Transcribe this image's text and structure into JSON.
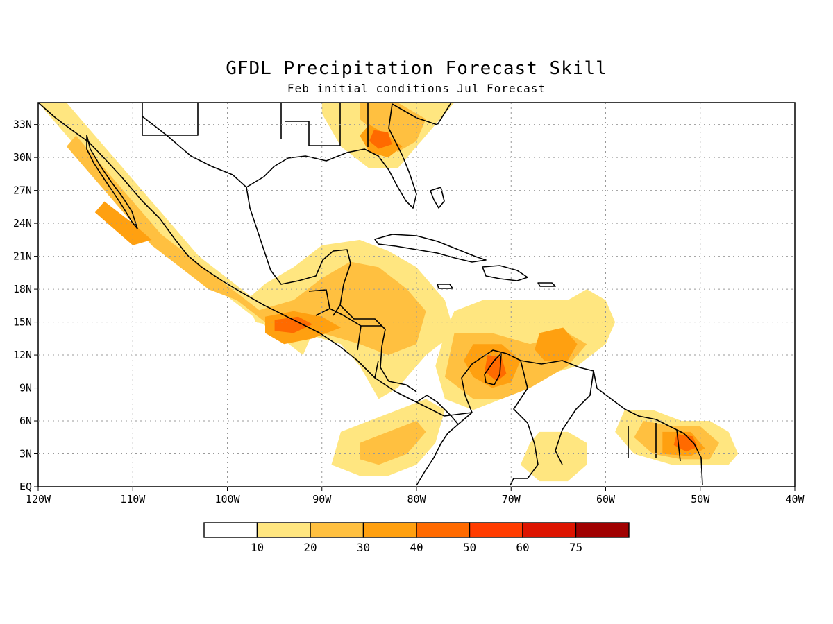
{
  "title": "GFDL Precipitation Forecast Skill",
  "subtitle": "Feb initial conditions  Jul Forecast",
  "map": {
    "lon_range": [
      -120,
      -40
    ],
    "lat_range": [
      0,
      35
    ],
    "lon_labels": [
      "120W",
      "110W",
      "100W",
      "90W",
      "80W",
      "70W",
      "60W",
      "50W",
      "40W"
    ],
    "lat_labels": [
      "EQ",
      "3N",
      "6N",
      "9N",
      "12N",
      "15N",
      "18N",
      "21N",
      "24N",
      "27N",
      "30N",
      "33N"
    ],
    "grid": true
  },
  "legend": {
    "labels": [
      "10",
      "20",
      "30",
      "40",
      "50",
      "60",
      "75"
    ],
    "colors": [
      "#ffffff",
      "#ffe680",
      "#ffc040",
      "#ffa010",
      "#ff6a00",
      "#ff3c00",
      "#dd1400",
      "#a00000"
    ]
  },
  "skill_regions": [
    {
      "level": 1,
      "points": [
        [
          -98,
          17
        ],
        [
          -96,
          18.5
        ],
        [
          -93,
          20
        ],
        [
          -90,
          22
        ],
        [
          -86,
          22.5
        ],
        [
          -83,
          21.5
        ],
        [
          -80,
          20
        ],
        [
          -77,
          17
        ],
        [
          -76,
          14
        ],
        [
          -79,
          12
        ],
        [
          -82,
          9
        ],
        [
          -84,
          8
        ],
        [
          -86,
          11
        ],
        [
          -88,
          13
        ],
        [
          -92,
          14
        ],
        [
          -97,
          15
        ]
      ]
    },
    {
      "level": 1,
      "points": [
        [
          -76,
          16
        ],
        [
          -73,
          17
        ],
        [
          -68,
          17
        ],
        [
          -64,
          17
        ],
        [
          -62,
          18
        ],
        [
          -60,
          17
        ],
        [
          -59,
          15
        ],
        [
          -60,
          13
        ],
        [
          -63,
          11
        ],
        [
          -67,
          10
        ],
        [
          -71,
          8
        ],
        [
          -74,
          7
        ],
        [
          -77,
          8
        ],
        [
          -78,
          11
        ],
        [
          -77,
          14
        ]
      ]
    },
    {
      "level": 1,
      "points": [
        [
          -118,
          33
        ],
        [
          -116,
          31
        ],
        [
          -113,
          28
        ],
        [
          -110,
          25
        ],
        [
          -107,
          22
        ],
        [
          -104,
          20
        ],
        [
          -101,
          18
        ],
        [
          -98,
          16
        ],
        [
          -95,
          14
        ],
        [
          -92,
          12
        ],
        [
          -91,
          14
        ],
        [
          -94,
          16
        ],
        [
          -97,
          17
        ],
        [
          -100,
          19
        ],
        [
          -103,
          21
        ],
        [
          -106,
          24
        ],
        [
          -109,
          27
        ],
        [
          -112,
          30
        ],
        [
          -115,
          33
        ],
        [
          -117,
          35
        ],
        [
          -120,
          35
        ]
      ]
    },
    {
      "level": 1,
      "points": [
        [
          -88,
          5
        ],
        [
          -85,
          6
        ],
        [
          -82,
          7
        ],
        [
          -79,
          8
        ],
        [
          -77,
          7
        ],
        [
          -78,
          4
        ],
        [
          -80,
          2
        ],
        [
          -83,
          1
        ],
        [
          -86,
          1
        ],
        [
          -89,
          2
        ]
      ]
    },
    {
      "level": 1,
      "points": [
        [
          -90,
          34
        ],
        [
          -88,
          31
        ],
        [
          -85,
          29
        ],
        [
          -82,
          29
        ],
        [
          -80,
          31
        ],
        [
          -78,
          33
        ],
        [
          -76,
          35
        ],
        [
          -90,
          35
        ]
      ]
    },
    {
      "level": 1,
      "points": [
        [
          -58,
          7
        ],
        [
          -55,
          7
        ],
        [
          -52,
          6
        ],
        [
          -49,
          6
        ],
        [
          -47,
          5
        ],
        [
          -46,
          3
        ],
        [
          -47,
          2
        ],
        [
          -50,
          2
        ],
        [
          -53,
          2
        ],
        [
          -57,
          3
        ],
        [
          -59,
          5
        ]
      ]
    },
    {
      "level": 1,
      "points": [
        [
          -67,
          5
        ],
        [
          -64,
          5
        ],
        [
          -62,
          4
        ],
        [
          -62,
          2
        ],
        [
          -64,
          0.5
        ],
        [
          -67,
          0.5
        ],
        [
          -69,
          2
        ],
        [
          -68,
          4
        ]
      ]
    },
    {
      "level": 2,
      "points": [
        [
          -97,
          16
        ],
        [
          -93,
          17
        ],
        [
          -90,
          19
        ],
        [
          -87,
          20.5
        ],
        [
          -84,
          20
        ],
        [
          -81,
          18
        ],
        [
          -79,
          16
        ],
        [
          -80,
          13
        ],
        [
          -83,
          12
        ],
        [
          -86,
          13
        ],
        [
          -90,
          14
        ],
        [
          -94,
          14.5
        ]
      ]
    },
    {
      "level": 2,
      "points": [
        [
          -117,
          31
        ],
        [
          -114,
          28
        ],
        [
          -111,
          25
        ],
        [
          -108,
          22
        ],
        [
          -105,
          20
        ],
        [
          -102,
          18
        ],
        [
          -99,
          17
        ],
        [
          -96,
          15
        ],
        [
          -93,
          13
        ],
        [
          -95,
          15
        ],
        [
          -98,
          17
        ],
        [
          -101,
          19
        ],
        [
          -104,
          21
        ],
        [
          -107,
          23
        ],
        [
          -110,
          26
        ],
        [
          -113,
          29
        ],
        [
          -116,
          32
        ]
      ]
    },
    {
      "level": 2,
      "points": [
        [
          -76,
          14
        ],
        [
          -72,
          14
        ],
        [
          -68,
          13
        ],
        [
          -64,
          14
        ],
        [
          -62,
          13
        ],
        [
          -64,
          11
        ],
        [
          -68,
          9
        ],
        [
          -71,
          8
        ],
        [
          -74,
          8
        ],
        [
          -77,
          10
        ]
      ]
    },
    {
      "level": 2,
      "points": [
        [
          -86,
          33.5
        ],
        [
          -84,
          32
        ],
        [
          -82,
          30.5
        ],
        [
          -80,
          31.5
        ],
        [
          -79,
          33.5
        ],
        [
          -82,
          35
        ],
        [
          -86,
          35
        ]
      ]
    },
    {
      "level": 2,
      "points": [
        [
          -56,
          6
        ],
        [
          -53,
          5.5
        ],
        [
          -50,
          5.5
        ],
        [
          -48,
          4
        ],
        [
          -49,
          2.5
        ],
        [
          -52,
          2.5
        ],
        [
          -55,
          3
        ],
        [
          -57,
          4.5
        ]
      ]
    },
    {
      "level": 2,
      "points": [
        [
          -86,
          4
        ],
        [
          -83,
          5
        ],
        [
          -80,
          6
        ],
        [
          -79,
          5
        ],
        [
          -81,
          3
        ],
        [
          -84,
          2
        ],
        [
          -86,
          2.5
        ]
      ]
    },
    {
      "level": 3,
      "points": [
        [
          -96,
          15.5
        ],
        [
          -93,
          16
        ],
        [
          -90,
          15.5
        ],
        [
          -88,
          14.5
        ],
        [
          -91,
          13.5
        ],
        [
          -94,
          13
        ],
        [
          -96,
          14
        ]
      ]
    },
    {
      "level": 3,
      "points": [
        [
          -74,
          13
        ],
        [
          -71,
          13
        ],
        [
          -69,
          11.5
        ],
        [
          -70,
          9.5
        ],
        [
          -72,
          9
        ],
        [
          -74,
          10
        ],
        [
          -75,
          11.5
        ]
      ]
    },
    {
      "level": 3,
      "points": [
        [
          -67,
          14
        ],
        [
          -64.5,
          14.5
        ],
        [
          -63,
          13
        ],
        [
          -64,
          11.5
        ],
        [
          -66.5,
          11.5
        ],
        [
          -67.5,
          12.5
        ]
      ]
    },
    {
      "level": 3,
      "points": [
        [
          -85,
          33
        ],
        [
          -83,
          32
        ],
        [
          -81.5,
          31
        ],
        [
          -83,
          30
        ],
        [
          -85,
          30.5
        ],
        [
          -86,
          32
        ]
      ]
    },
    {
      "level": 3,
      "points": [
        [
          -54,
          5
        ],
        [
          -51,
          5
        ],
        [
          -49.5,
          3.5
        ],
        [
          -51,
          2.8
        ],
        [
          -54,
          3
        ]
      ]
    },
    {
      "level": 3,
      "points": [
        [
          -113,
          26
        ],
        [
          -110,
          24
        ],
        [
          -108,
          22.5
        ],
        [
          -110,
          22
        ],
        [
          -112,
          23.5
        ],
        [
          -114,
          25
        ]
      ]
    },
    {
      "level": 4,
      "points": [
        [
          -95,
          15.2
        ],
        [
          -92.5,
          15.5
        ],
        [
          -91,
          14.8
        ],
        [
          -93,
          14
        ],
        [
          -95,
          14.2
        ]
      ]
    },
    {
      "level": 4,
      "points": [
        [
          -72.5,
          12
        ],
        [
          -71,
          11.8
        ],
        [
          -70.5,
          10.3
        ],
        [
          -71.5,
          9.6
        ],
        [
          -72.8,
          10.5
        ]
      ]
    },
    {
      "level": 4,
      "points": [
        [
          -52.5,
          4.8
        ],
        [
          -50.8,
          4.6
        ],
        [
          -50.3,
          3.6
        ],
        [
          -51.5,
          3.2
        ],
        [
          -52.8,
          3.8
        ]
      ]
    },
    {
      "level": 4,
      "points": [
        [
          -84.5,
          32.5
        ],
        [
          -83,
          32.3
        ],
        [
          -82.6,
          31.2
        ],
        [
          -84,
          30.8
        ],
        [
          -85,
          31.5
        ]
      ]
    }
  ]
}
